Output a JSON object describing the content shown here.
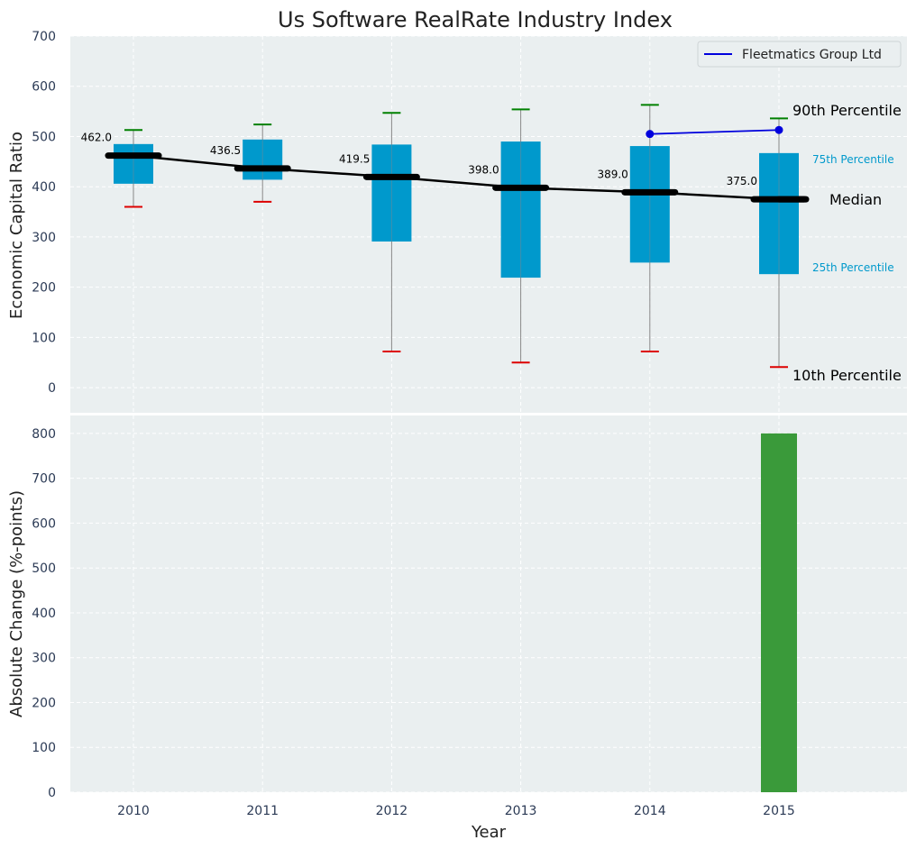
{
  "chart_data": [
    {
      "type": "box",
      "title": "Us Software RealRate Industry Index",
      "ylabel": "Economic Capital Ratio",
      "ylim": [
        -50,
        700
      ],
      "yticks": [
        0,
        100,
        200,
        300,
        400,
        500,
        600,
        700
      ],
      "grid": true,
      "categories": [
        "2010",
        "2011",
        "2012",
        "2013",
        "2014",
        "2015"
      ],
      "boxes": [
        {
          "year": "2010",
          "p10": 360,
          "p25": 406,
          "median": 462,
          "p75": 485,
          "p90": 513,
          "label": "462.0"
        },
        {
          "year": "2011",
          "p10": 370,
          "p25": 414,
          "median": 436.5,
          "p75": 494,
          "p90": 524,
          "label": "436.5"
        },
        {
          "year": "2012",
          "p10": 72,
          "p25": 291,
          "median": 419.5,
          "p75": 484,
          "p90": 547,
          "label": "419.5"
        },
        {
          "year": "2013",
          "p10": 50,
          "p25": 219,
          "median": 398,
          "p75": 490,
          "p90": 554,
          "label": "398.0"
        },
        {
          "year": "2014",
          "p10": 72,
          "p25": 249,
          "median": 389,
          "p75": 481,
          "p90": 563,
          "label": "389.0"
        },
        {
          "year": "2015",
          "p10": 41,
          "p25": 226,
          "median": 375,
          "p75": 467,
          "p90": 536,
          "label": "375.0"
        }
      ],
      "series": [
        {
          "name": "Fleetmatics Group Ltd",
          "x": [
            "2014",
            "2015"
          ],
          "values": [
            505,
            513
          ],
          "color": "#0000dd"
        }
      ],
      "legend": {
        "position": "top-right",
        "entries": [
          "Fleetmatics Group Ltd"
        ]
      },
      "annotations": {
        "p90": "90th Percentile",
        "p75": "75th Percentile",
        "median": "Median",
        "p25": "25th Percentile",
        "p10": "10th Percentile"
      },
      "colors": {
        "box": "#0099cc",
        "median": "#000000",
        "p90_cap": "#008000",
        "p10_cap": "#dd0000",
        "background": "#eaeff0"
      }
    },
    {
      "type": "bar",
      "xlabel": "Year",
      "ylabel": "Absolute Change (%-points)",
      "ylim": [
        0,
        840
      ],
      "yticks": [
        0,
        100,
        200,
        300,
        400,
        500,
        600,
        700,
        800
      ],
      "categories": [
        "2010",
        "2011",
        "2012",
        "2013",
        "2014",
        "2015"
      ],
      "values": [
        null,
        null,
        null,
        null,
        null,
        800
      ],
      "color": "#3a9a3a",
      "grid": true
    }
  ]
}
